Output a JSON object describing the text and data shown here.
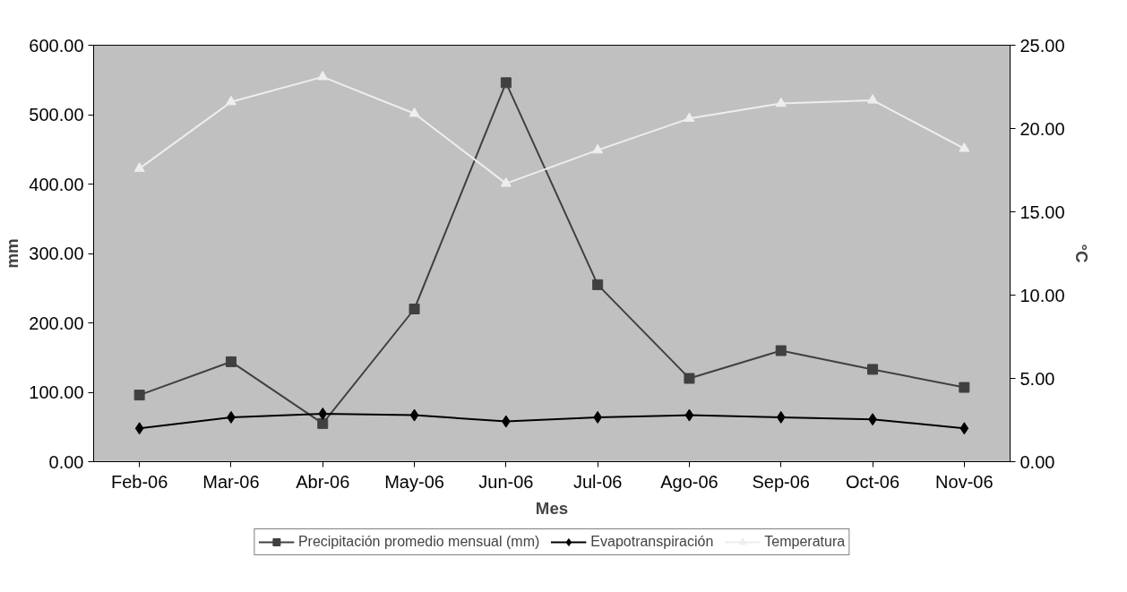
{
  "chart_data": {
    "type": "line",
    "xlabel": "Mes",
    "ylabel": "mm",
    "y2label": "°C",
    "categories": [
      "Feb-06",
      "Mar-06",
      "Abr-06",
      "May-06",
      "Jun-06",
      "Jul-06",
      "Ago-06",
      "Sep-06",
      "Oct-06",
      "Nov-06"
    ],
    "series": [
      {
        "name": "Precipitación promedio mensual (mm)",
        "color": "#404040",
        "marker": "square",
        "values": [
          96,
          144,
          55,
          220,
          546,
          255,
          120,
          160,
          133,
          107
        ]
      },
      {
        "name": "Evapotranspiración",
        "color": "#000000",
        "marker": "diamond",
        "values": [
          48,
          64,
          69,
          67,
          58,
          64,
          67,
          64,
          61,
          48
        ]
      },
      {
        "name": "Temperatura",
        "color": "#eeeeee",
        "marker": "triangle",
        "axis": "y2",
        "values": [
          17.6,
          21.6,
          23.1,
          20.9,
          16.7,
          18.7,
          20.6,
          21.5,
          21.7,
          18.8
        ]
      }
    ],
    "ylim": [
      0,
      600
    ],
    "yticks": [
      {
        "value": 0,
        "label": "0.00"
      },
      {
        "value": 100,
        "label": "100.00"
      },
      {
        "value": 200,
        "label": "200.00"
      },
      {
        "value": 300,
        "label": "300.00"
      },
      {
        "value": 400,
        "label": "400.00"
      },
      {
        "value": 500,
        "label": "500.00"
      },
      {
        "value": 600,
        "label": "600.00"
      }
    ],
    "y2lim": [
      0,
      25
    ],
    "y2ticks": [
      {
        "value": 0,
        "label": "0.00"
      },
      {
        "value": 5,
        "label": "5.00"
      },
      {
        "value": 10,
        "label": "10.00"
      },
      {
        "value": 15,
        "label": "15.00"
      },
      {
        "value": 20,
        "label": "20.00"
      },
      {
        "value": 25,
        "label": "25.00"
      }
    ],
    "grid": false,
    "legend": "bottom"
  }
}
